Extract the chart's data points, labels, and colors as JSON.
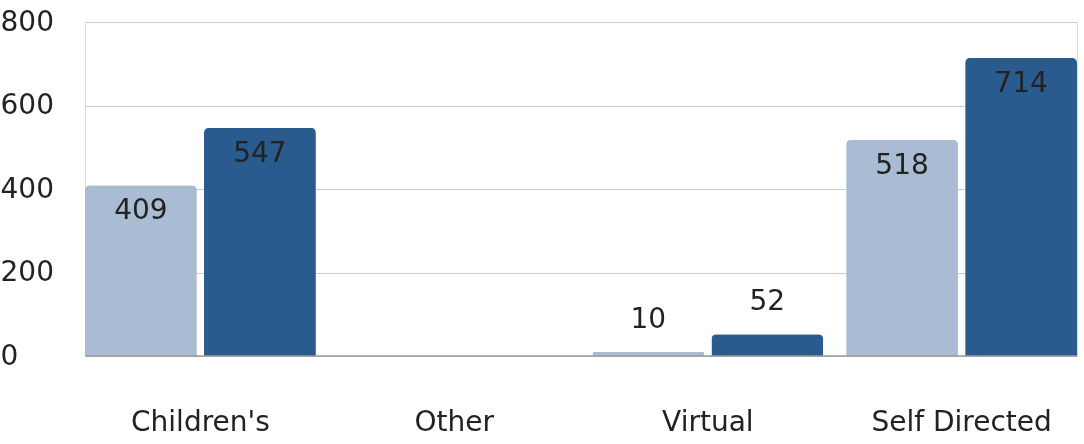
{
  "chart_data": {
    "type": "bar",
    "categories": [
      "Children's",
      "Other",
      "Virtual",
      "Self Directed"
    ],
    "series": [
      {
        "color": "#a9bcd3",
        "values": [
          409,
          null,
          10,
          518
        ]
      },
      {
        "color": "#2a5b8f",
        "values": [
          547,
          null,
          52,
          714
        ]
      }
    ],
    "ylim": [
      0,
      800
    ],
    "yticks": [
      0,
      200,
      400,
      600,
      800
    ],
    "grid": "y",
    "data_labels": true
  }
}
